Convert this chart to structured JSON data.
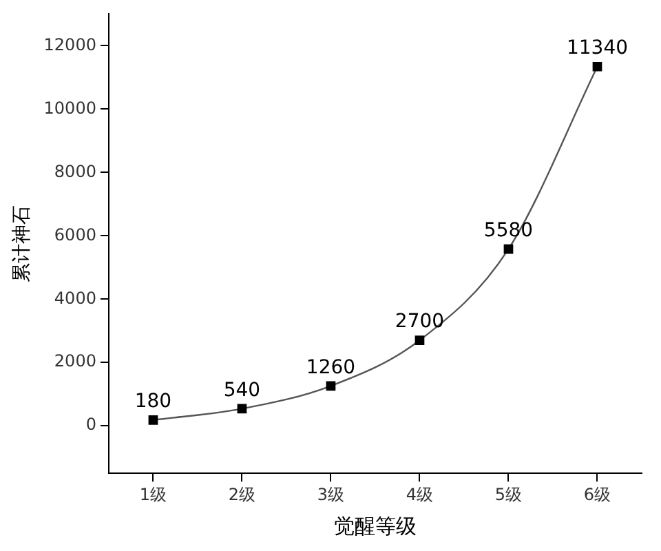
{
  "chart_data": {
    "type": "line",
    "xlabel": "觉醒等级",
    "ylabel": "累计神石",
    "categories": [
      "1级",
      "2级",
      "3级",
      "4级",
      "5级",
      "6级"
    ],
    "values": [
      180,
      540,
      1260,
      2700,
      5580,
      11340
    ],
    "color": "#555555",
    "marker": "square",
    "line_style": "solid",
    "ylim": [
      -1500,
      13000
    ],
    "yticks": [
      0,
      2000,
      4000,
      6000,
      8000,
      10000,
      12000
    ],
    "grid": false,
    "legend": false,
    "data_labels": true
  }
}
